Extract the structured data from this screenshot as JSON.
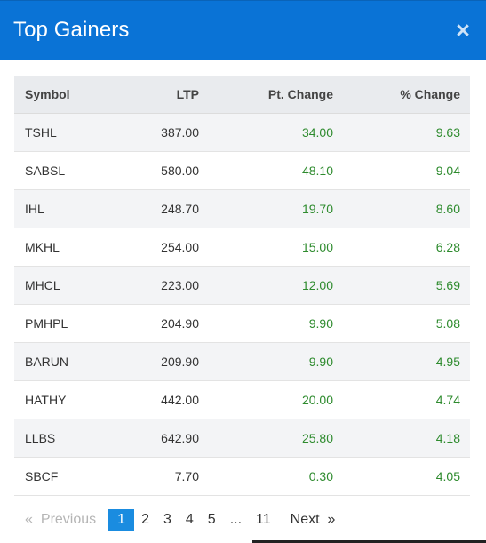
{
  "header": {
    "title": "Top Gainers",
    "close_label": "×"
  },
  "table": {
    "columns": [
      "Symbol",
      "LTP",
      "Pt. Change",
      "% Change"
    ],
    "rows": [
      {
        "symbol": "TSHL",
        "ltp": "387.00",
        "pt_change": "34.00",
        "pct_change": "9.63"
      },
      {
        "symbol": "SABSL",
        "ltp": "580.00",
        "pt_change": "48.10",
        "pct_change": "9.04"
      },
      {
        "symbol": "IHL",
        "ltp": "248.70",
        "pt_change": "19.70",
        "pct_change": "8.60"
      },
      {
        "symbol": "MKHL",
        "ltp": "254.00",
        "pt_change": "15.00",
        "pct_change": "6.28"
      },
      {
        "symbol": "MHCL",
        "ltp": "223.00",
        "pt_change": "12.00",
        "pct_change": "5.69"
      },
      {
        "symbol": "PMHPL",
        "ltp": "204.90",
        "pt_change": "9.90",
        "pct_change": "5.08"
      },
      {
        "symbol": "BARUN",
        "ltp": "209.90",
        "pt_change": "9.90",
        "pct_change": "4.95"
      },
      {
        "symbol": "HATHY",
        "ltp": "442.00",
        "pt_change": "20.00",
        "pct_change": "4.74"
      },
      {
        "symbol": "LLBS",
        "ltp": "642.90",
        "pt_change": "25.80",
        "pct_change": "4.18"
      },
      {
        "symbol": "SBCF",
        "ltp": "7.70",
        "pt_change": "0.30",
        "pct_change": "4.05"
      }
    ]
  },
  "pagination": {
    "prev_arrow": "«",
    "prev_label": "Previous",
    "pages": [
      "1",
      "2",
      "3",
      "4",
      "5"
    ],
    "ellipsis": "...",
    "last_page": "11",
    "next_label": "Next",
    "next_arrow": "»",
    "current_page": "1"
  },
  "colors": {
    "header_bg": "#0a73d6",
    "positive": "#2e8b2e",
    "active_page": "#1a8ce0"
  }
}
